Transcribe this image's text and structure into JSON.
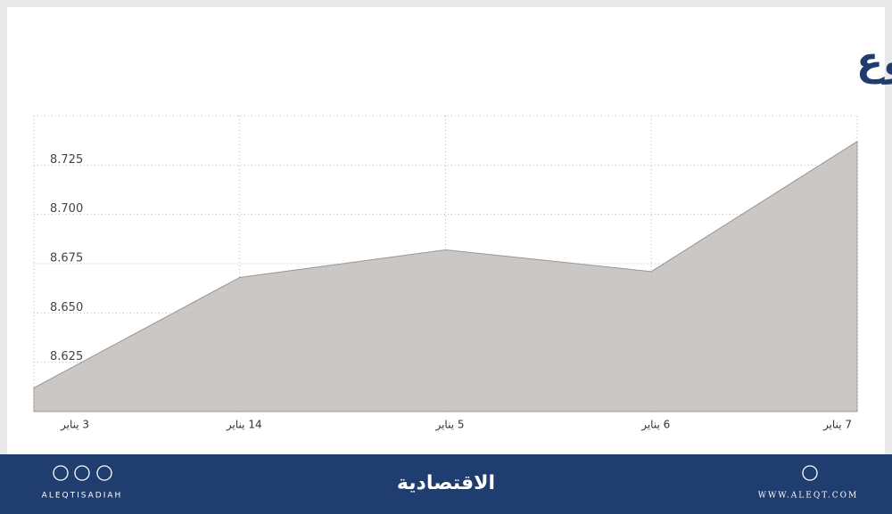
{
  "chart_data": {
    "type": "area",
    "title": "المؤشر في أسبوع",
    "categories": [
      "3 يناير",
      "14 يناير",
      "5 يناير",
      "6 يناير",
      "7 يناير"
    ],
    "values": [
      8.612,
      8.668,
      8.682,
      8.671,
      8.737
    ],
    "color": "#cbc7c4",
    "line_color": "#9a9692",
    "ylim": [
      8.6,
      8.75
    ],
    "yticks": [
      8.625,
      {
        "value": 8.65,
        "label": "8.650"
      },
      8.675,
      {
        "value": 8.7,
        "label": "8.700"
      },
      8.725
    ],
    "grid": true
  },
  "footer": {
    "brand": "الاقتصادية",
    "social": "ALEQTISADIAH",
    "website": "WWW.ALEQT.COM"
  }
}
